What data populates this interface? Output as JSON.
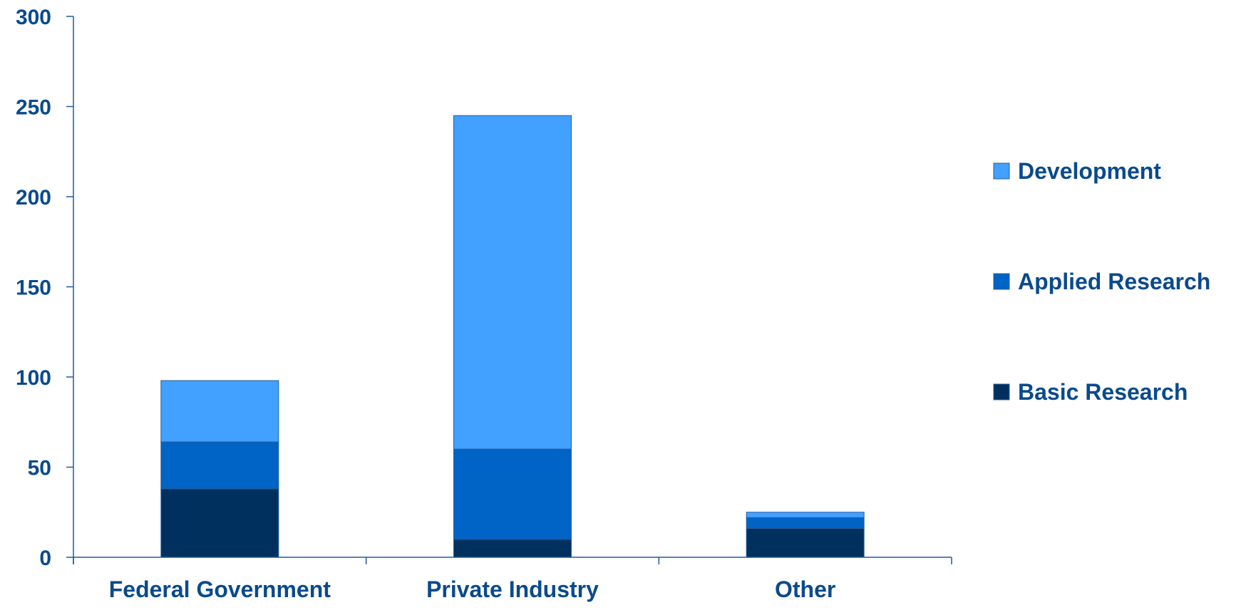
{
  "colors": {
    "text": "#0a4a8c",
    "axis": "#1f5b9e",
    "Basic Research": "#00305e",
    "Applied Research": "#0063c6",
    "Development": "#42a0ff"
  },
  "chart_data": {
    "type": "bar",
    "stacked": true,
    "title": "",
    "xlabel": "",
    "ylabel": "",
    "categories": [
      "Federal Government",
      "Private Industry",
      "Other"
    ],
    "series": [
      {
        "name": "Basic Research",
        "values": [
          38,
          10,
          16
        ]
      },
      {
        "name": "Applied Research",
        "values": [
          26,
          50,
          6
        ]
      },
      {
        "name": "Development",
        "values": [
          34,
          185,
          3
        ]
      }
    ],
    "ylim": [
      0,
      300
    ],
    "yticks": [
      0,
      50,
      100,
      150,
      200,
      250,
      300
    ],
    "grid": false,
    "legend": {
      "placement": "right",
      "order": [
        "Development",
        "Applied Research",
        "Basic Research"
      ]
    }
  }
}
